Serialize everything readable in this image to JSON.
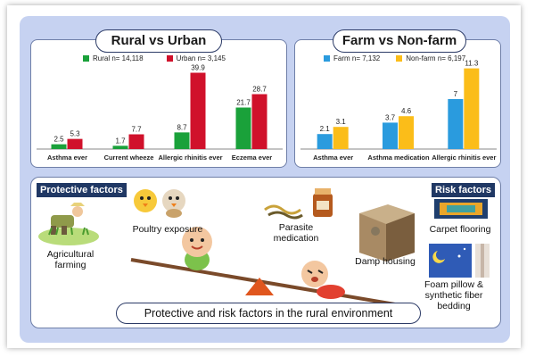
{
  "panels": {
    "rural_urban": {
      "title": "Rural vs Urban"
    },
    "farm": {
      "title": "Farm vs Non-farm"
    }
  },
  "lower": {
    "protective_label": "Protective factors",
    "risk_label": "Risk factors",
    "bottom_title": "Protective and risk factors in the rural environment",
    "items": {
      "poultry": "Poultry exposure",
      "parasite": "Parasite medication",
      "agri": "Agricultural farming",
      "damp": "Damp housing",
      "carpet": "Carpet flooring",
      "foam": "Foam pillow & synthetic fiber bedding"
    }
  },
  "colors": {
    "green": "#1aa13a",
    "red": "#d0112b",
    "blue": "#2a9bde",
    "yellow": "#fbbd19",
    "navy": "#203864",
    "board": "#c6d2f1"
  },
  "chart_data": [
    {
      "type": "bar",
      "title": "Rural vs Urban",
      "categories": [
        "Asthma ever",
        "Current wheeze",
        "Allergic rhinitis ever",
        "Eczema ever"
      ],
      "series": [
        {
          "name": "Rural n= 14,118",
          "values": [
            2.5,
            1.7,
            8.7,
            21.7
          ],
          "color": "#1aa13a"
        },
        {
          "name": "Urban n= 3,145",
          "values": [
            5.3,
            7.7,
            39.9,
            28.7
          ],
          "color": "#d0112b"
        }
      ],
      "ylim": [
        0,
        42
      ],
      "legend": "top-center"
    },
    {
      "type": "bar",
      "title": "Farm vs Non-farm",
      "categories": [
        "Asthma ever",
        "Asthma medication",
        "Allergic rhinitis ever"
      ],
      "series": [
        {
          "name": "Farm n= 7,132",
          "values": [
            2.1,
            3.7,
            7.0
          ],
          "color": "#2a9bde"
        },
        {
          "name": "Non-farm n= 6,197",
          "values": [
            3.1,
            4.6,
            11.3
          ],
          "color": "#fbbd19"
        }
      ],
      "ylim": [
        0,
        12
      ],
      "legend": "top-center"
    }
  ]
}
